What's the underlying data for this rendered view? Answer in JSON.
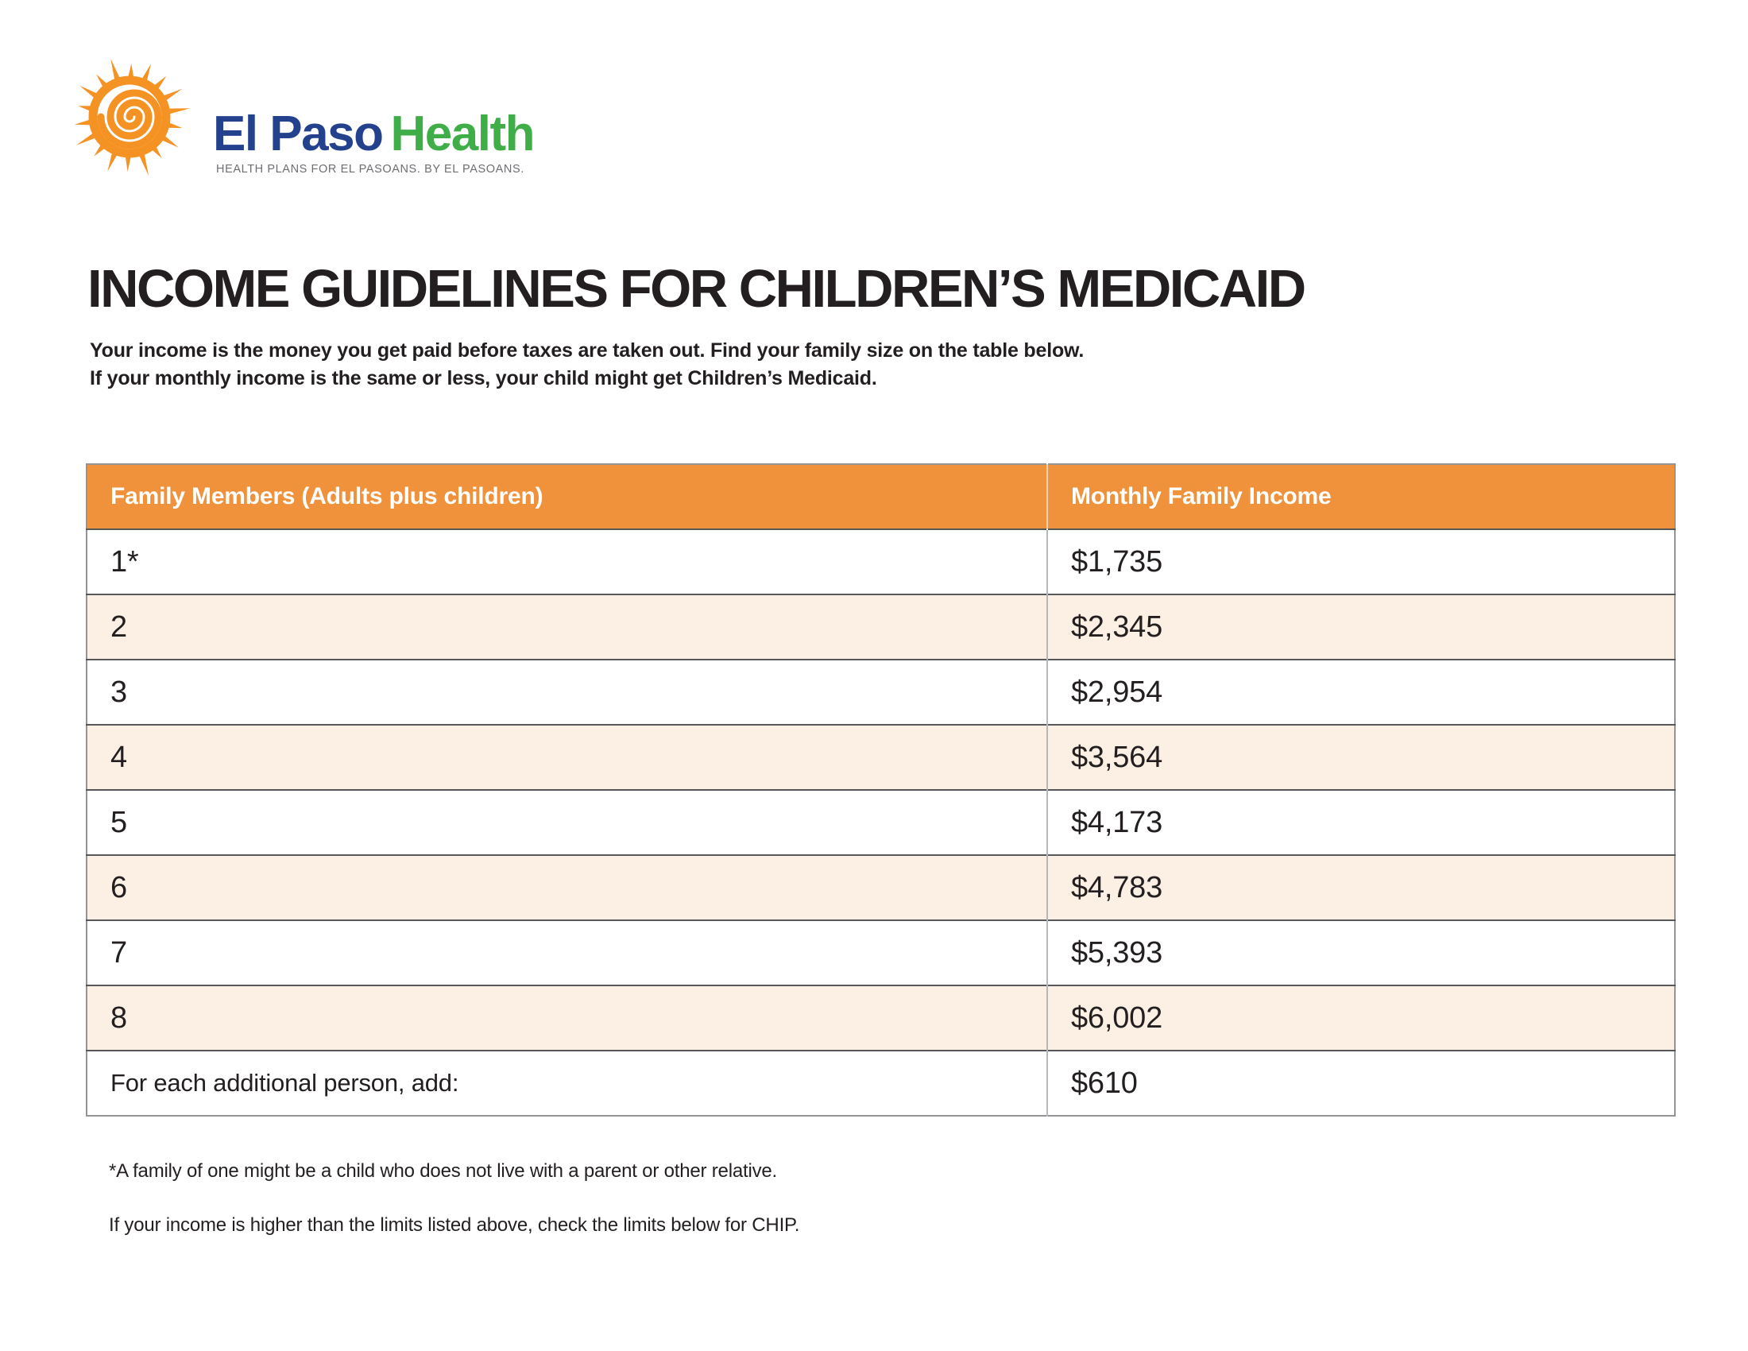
{
  "brand": {
    "name_primary": "El Paso",
    "name_secondary": "Health",
    "tagline": "HEALTH PLANS FOR EL PASOANS. BY EL PASOANS.",
    "colors": {
      "sun_orange": "#F49224",
      "navy": "#24418E",
      "green": "#3FAE49",
      "tagline_gray": "#6D6E71"
    }
  },
  "heading": {
    "title": "INCOME GUIDELINES FOR CHILDREN’S MEDICAID",
    "intro_line1": "Your income is the money you get paid before taxes are taken out. Find your family size on the table below.",
    "intro_line2": "If your monthly income is the same or less, your child might get Children’s Medicaid."
  },
  "table": {
    "header_bg": "#F0913B",
    "alt_row_bg": "#FBF0E3",
    "columns": [
      "Family Members (Adults plus children)",
      "Monthly Family Income"
    ],
    "rows": [
      {
        "members": "1*",
        "income": "$1,735"
      },
      {
        "members": "2",
        "income": "$2,345"
      },
      {
        "members": "3",
        "income": "$2,954"
      },
      {
        "members": "4",
        "income": "$3,564"
      },
      {
        "members": "5",
        "income": "$4,173"
      },
      {
        "members": "6",
        "income": "$4,783"
      },
      {
        "members": "7",
        "income": "$5,393"
      },
      {
        "members": "8",
        "income": "$6,002"
      },
      {
        "members": "For each additional person, add:",
        "income": "$610"
      }
    ]
  },
  "notes": {
    "footnote": "*A family of one might be a child who does not live with a parent or other relative.",
    "chip_note": "If your income is higher than the limits listed above, check the limits below for CHIP."
  }
}
